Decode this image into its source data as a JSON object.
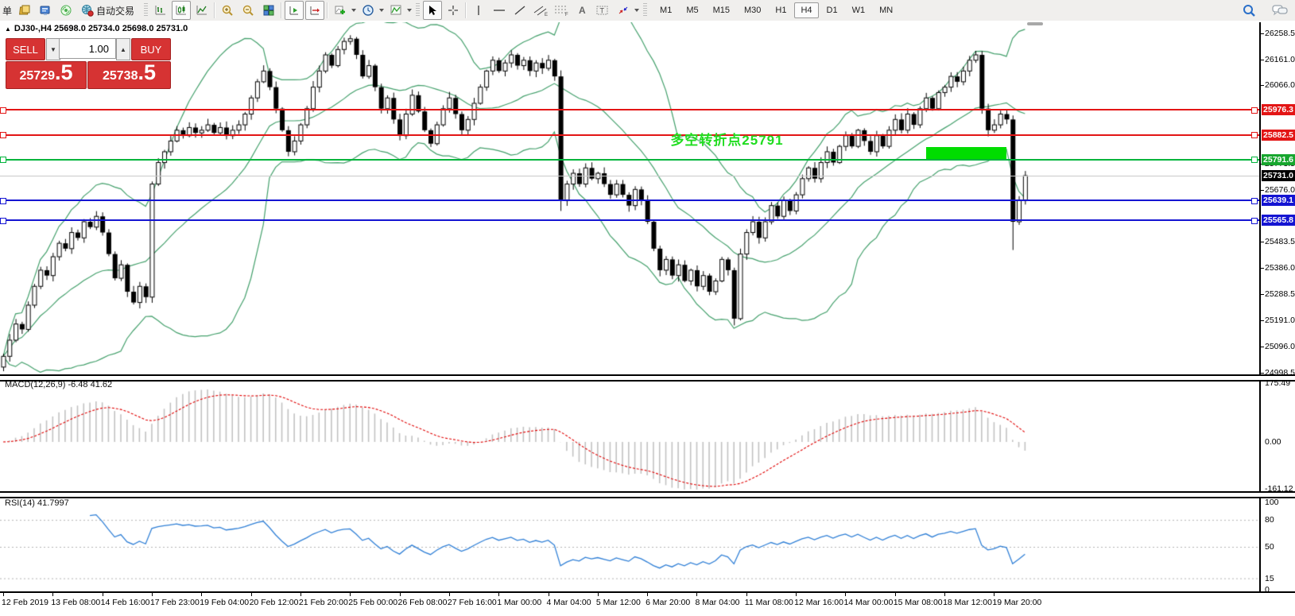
{
  "toolbar": {
    "clipped_label": "单",
    "autotrade_label": "自动交易",
    "timeframes": [
      "M1",
      "M5",
      "M15",
      "M30",
      "H1",
      "H4",
      "D1",
      "W1",
      "MN"
    ],
    "active_timeframe": "H4"
  },
  "chart": {
    "symbol": "DJ30-",
    "period": "H4",
    "title": "DJ30-,H4  25698.0 25734.0 25698.0 25731.0",
    "ohlc": {
      "open": "25698.0",
      "high": "25734.0",
      "low": "25698.0",
      "close": "25731.0"
    }
  },
  "trade_panel": {
    "sell_label": "SELL",
    "buy_label": "BUY",
    "volume": "1.00",
    "sell_price_main": "25729",
    "sell_price_frac": ".5",
    "buy_price_main": "25738",
    "buy_price_frac": ".5"
  },
  "indicator_labels": {
    "macd": "MACD(12,26,9) -6.48 41.62",
    "rsi": "RSI(14) 41.7997"
  },
  "chart_data": {
    "type": "candlestick",
    "symbol": "DJ30-",
    "timeframe": "H4",
    "panels": [
      "price",
      "MACD(12,26,9)",
      "RSI(14)"
    ],
    "price_axis": {
      "ticks": [
        26258.5,
        26161.0,
        26066.0,
        25773.5,
        25676.0,
        25483.5,
        25386.0,
        25288.5,
        25191.0,
        25096.0,
        24998.5
      ],
      "visible_range": [
        24998.5,
        26258.5
      ]
    },
    "x_axis_labels": [
      {
        "bar": 0,
        "label": "12 Feb 2019"
      },
      {
        "bar": 8,
        "label": "13 Feb 08:00"
      },
      {
        "bar": 16,
        "label": "14 Feb 16:00"
      },
      {
        "bar": 24,
        "label": "17 Feb 23:00"
      },
      {
        "bar": 32,
        "label": "19 Feb 04:00"
      },
      {
        "bar": 40,
        "label": "20 Feb 12:00"
      },
      {
        "bar": 48,
        "label": "21 Feb 20:00"
      },
      {
        "bar": 56,
        "label": "25 Feb 00:00"
      },
      {
        "bar": 64,
        "label": "26 Feb 08:00"
      },
      {
        "bar": 72,
        "label": "27 Feb 16:00"
      },
      {
        "bar": 80,
        "label": "1 Mar 00:00"
      },
      {
        "bar": 88,
        "label": "4 Mar 04:00"
      },
      {
        "bar": 96,
        "label": "5 Mar 12:00"
      },
      {
        "bar": 104,
        "label": "6 Mar 20:00"
      },
      {
        "bar": 112,
        "label": "8 Mar 04:00"
      },
      {
        "bar": 120,
        "label": "11 Mar 08:00"
      },
      {
        "bar": 128,
        "label": "12 Mar 16:00"
      },
      {
        "bar": 136,
        "label": "14 Mar 00:00"
      },
      {
        "bar": 144,
        "label": "15 Mar 08:00"
      },
      {
        "bar": 152,
        "label": "18 Mar 12:00"
      },
      {
        "bar": 160,
        "label": "19 Mar 20:00"
      }
    ],
    "candles": {
      "first_open": 25020,
      "closes": [
        25060,
        25120,
        25180,
        25160,
        25250,
        25320,
        25380,
        25360,
        25430,
        25480,
        25460,
        25520,
        25500,
        25560,
        25540,
        25580,
        25520,
        25440,
        25350,
        25400,
        25300,
        25260,
        25320,
        25280,
        25700,
        25780,
        25820,
        25860,
        25900,
        25880,
        25910,
        25890,
        25900,
        25920,
        25890,
        25910,
        25880,
        25900,
        25920,
        25960,
        26020,
        26080,
        26120,
        26060,
        25980,
        25900,
        25820,
        25860,
        25920,
        25980,
        26060,
        26120,
        26180,
        26140,
        26200,
        26230,
        26240,
        26180,
        26100,
        26140,
        26060,
        25980,
        26020,
        25940,
        25880,
        25960,
        26030,
        25970,
        25900,
        25850,
        25920,
        25980,
        26020,
        25960,
        25900,
        25940,
        26000,
        26060,
        26120,
        26160,
        26120,
        26150,
        26180,
        26140,
        26160,
        26120,
        26150,
        26130,
        26160,
        26100,
        25640,
        25700,
        25740,
        25700,
        25760,
        25720,
        25740,
        25700,
        25660,
        25700,
        25660,
        25620,
        25680,
        25640,
        25560,
        25460,
        25380,
        25420,
        25360,
        25400,
        25340,
        25380,
        25320,
        25360,
        25300,
        25340,
        25420,
        25380,
        25200,
        25440,
        25520,
        25560,
        25500,
        25560,
        25620,
        25580,
        25640,
        25600,
        25660,
        25720,
        25760,
        25720,
        25780,
        25820,
        25780,
        25840,
        25880,
        25840,
        25900,
        25860,
        25820,
        25880,
        25840,
        25900,
        25940,
        25900,
        25960,
        25920,
        25980,
        26020,
        25980,
        26040,
        26060,
        26100,
        26080,
        26120,
        26160,
        26180,
        25980,
        25900,
        25920,
        25960,
        25940,
        25560,
        25640,
        25731
      ],
      "wick_overrides": {
        "0": {
          "low": 25005
        },
        "56": {
          "high": 26253
        },
        "90": {
          "low": 25600
        },
        "118": {
          "low": 25175
        },
        "157": {
          "high": 26195
        },
        "163": {
          "low": 25455
        }
      },
      "up_color": "#ffffff",
      "down_color": "#000000",
      "outline_color": "#000000"
    },
    "indicators": {
      "bollinger": {
        "period": 20,
        "deviation": 2,
        "color": "#44a06c"
      },
      "macd": {
        "fast": 12,
        "slow": 26,
        "signal": 9,
        "current_main": -6.48,
        "current_signal": 41.62,
        "axis_ticks": [
          "175.49",
          "0.00",
          "-161.12"
        ],
        "hist_color": "#c2c2c2",
        "signal_color": "#e00000"
      },
      "rsi": {
        "period": 14,
        "current": 41.7997,
        "axis_ticks": [
          100,
          80,
          50,
          15,
          0
        ],
        "levels": [
          80,
          50,
          15
        ],
        "color": "#2f7fd6"
      }
    },
    "objects": {
      "hlines": [
        {
          "price": "25976.3",
          "value": 25976.3,
          "color": "#e31515",
          "badge": "#e31515",
          "width": 2,
          "anchors": true
        },
        {
          "price": "25882.5",
          "value": 25882.5,
          "color": "#e31515",
          "badge": "#e31515",
          "width": 2,
          "anchors": true
        },
        {
          "price": "25791.6",
          "value": 25791.6,
          "color": "#00b43c",
          "badge": "#17a62e",
          "width": 2,
          "anchors": true
        },
        {
          "price": "25731.0",
          "value": 25731.0,
          "color": "#c9c9c9",
          "badge": "#000000",
          "width": 1,
          "anchors": false
        },
        {
          "price": "25639.1",
          "value": 25639.1,
          "color": "#1414d2",
          "badge": "#1414d2",
          "width": 2,
          "anchors": true
        },
        {
          "price": "25565.8",
          "value": 25565.8,
          "color": "#1414d2",
          "badge": "#1414d2",
          "width": 2,
          "anchors": true
        }
      ],
      "rect": {
        "from_bar": 149,
        "to_bar": 162,
        "price_top": 25838,
        "price_bottom": 25793,
        "color": "#00dd00"
      },
      "text": {
        "content": "多空转折点25791",
        "color": "#1fdd1f",
        "bar": 108,
        "price": 25906
      }
    }
  }
}
